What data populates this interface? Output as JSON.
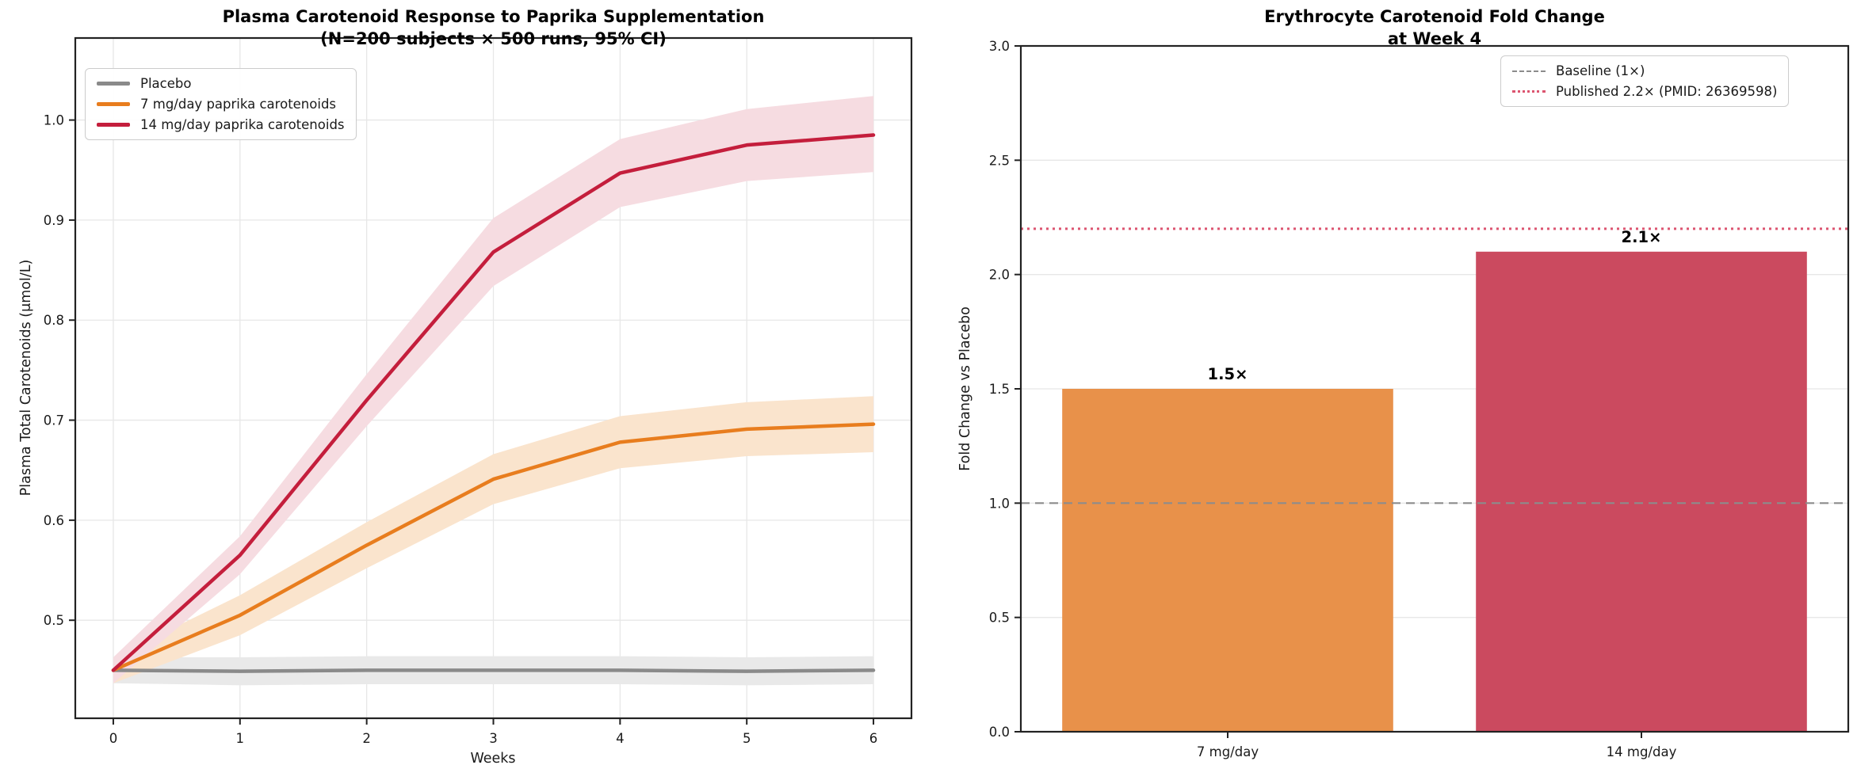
{
  "chart_data": [
    {
      "type": "line",
      "title": "Plasma Carotenoid Response to Paprika Supplementation",
      "subtitle": "(N=200 subjects × 500 runs, 95% CI)",
      "xlabel": "Weeks",
      "ylabel": "Plasma Total Carotenoids (μmol/L)",
      "x": [
        0,
        1,
        2,
        3,
        4,
        5,
        6
      ],
      "xtick_labels": [
        "0",
        "1",
        "2",
        "3",
        "4",
        "5",
        "6"
      ],
      "ytick_values": [
        0.5,
        0.6,
        0.7,
        0.8,
        0.9,
        1.0
      ],
      "ytick_labels": [
        "0.5",
        "0.6",
        "0.7",
        "0.8",
        "0.9",
        "1.0"
      ],
      "xlim": [
        -0.3,
        6.3
      ],
      "ylim": [
        0.402,
        1.082
      ],
      "grid": true,
      "legend_position": "upper left",
      "series": [
        {
          "name": "Placebo",
          "color": "#8a8a8a",
          "band_color": "#e9e9e9",
          "values": [
            0.45,
            0.449,
            0.45,
            0.45,
            0.45,
            0.449,
            0.45
          ],
          "ci_lower": [
            0.437,
            0.435,
            0.436,
            0.436,
            0.436,
            0.435,
            0.436
          ],
          "ci_upper": [
            0.463,
            0.463,
            0.464,
            0.464,
            0.464,
            0.463,
            0.464
          ]
        },
        {
          "name": "7 mg/day paprika carotenoids",
          "color": "#e87d1e",
          "band_color": "#fae4cd",
          "values": [
            0.45,
            0.505,
            0.575,
            0.641,
            0.678,
            0.691,
            0.696
          ],
          "ci_lower": [
            0.437,
            0.485,
            0.552,
            0.616,
            0.652,
            0.664,
            0.668
          ],
          "ci_upper": [
            0.463,
            0.525,
            0.598,
            0.666,
            0.704,
            0.718,
            0.724
          ]
        },
        {
          "name": "14 mg/day paprika carotenoids",
          "color": "#c41e3c",
          "band_color": "#f6dce1",
          "values": [
            0.45,
            0.565,
            0.72,
            0.868,
            0.947,
            0.975,
            0.985
          ],
          "ci_lower": [
            0.437,
            0.546,
            0.694,
            0.834,
            0.913,
            0.939,
            0.948
          ],
          "ci_upper": [
            0.463,
            0.584,
            0.746,
            0.902,
            0.981,
            1.011,
            1.024
          ]
        }
      ]
    },
    {
      "type": "bar",
      "title": "Erythrocyte Carotenoid Fold Change",
      "subtitle": "at Week 4",
      "xlabel": "",
      "ylabel": "Fold Change vs Placebo",
      "categories": [
        "7 mg/day",
        "14 mg/day"
      ],
      "values": [
        1.5,
        2.1
      ],
      "bar_labels": [
        "1.5×",
        "2.1×"
      ],
      "bar_colors": [
        "#e8914a",
        "#cb4a5f"
      ],
      "ytick_values": [
        0.0,
        0.5,
        1.0,
        1.5,
        2.0,
        2.5,
        3.0
      ],
      "ytick_labels": [
        "0.0",
        "0.5",
        "1.0",
        "1.5",
        "2.0",
        "2.5",
        "3.0"
      ],
      "ylim": [
        0,
        3.0
      ],
      "xlim": [
        -0.5,
        1.5
      ],
      "bar_width": 0.8,
      "grid": true,
      "legend_position": "upper right",
      "reference_lines": [
        {
          "label": "Baseline (1×)",
          "value": 1.0,
          "color": "#8c8c8c",
          "style": "dashed"
        },
        {
          "label": "Published 2.2× (PMID: 26369598)",
          "value": 2.2,
          "color": "#dc5570",
          "style": "dotted"
        }
      ]
    }
  ]
}
